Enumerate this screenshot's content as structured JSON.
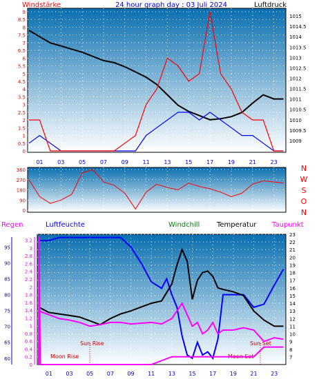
{
  "header": {
    "left": "Windstärke",
    "center": "24 hour graph day : 03 Juli 2024",
    "right": "Luftdruck"
  },
  "colors": {
    "wind": "#ff0000",
    "gust": "#0000ff",
    "pressure": "#000000",
    "humidity": "#0000ff",
    "windchill": "#008000",
    "temperature": "#000000",
    "dewpoint": "#ff00ff",
    "sun_moon": "#cc0000",
    "plot_top": "#0a6fb0",
    "plot_bottom": "#ffffff"
  },
  "chart_data": [
    {
      "type": "line",
      "title": "Windstärke / Luftdruck",
      "x_ticks": [
        "01",
        "03",
        "05",
        "07",
        "09",
        "11",
        "13",
        "15",
        "17",
        "19",
        "21",
        "23"
      ],
      "x_range": [
        0,
        24
      ],
      "y_left_range": [
        0,
        9
      ],
      "y_left_ticks": [
        "0",
        "0.5",
        "1",
        "1.5",
        "2",
        "2.5",
        "3",
        "3.5",
        "4",
        "4.5",
        "5",
        "5.5",
        "6",
        "6.5",
        "7",
        "7.5",
        "8",
        "8.5",
        "9"
      ],
      "y_right_range": [
        1008.5,
        1015.2
      ],
      "y_right_ticks": [
        "1009",
        "1009.5",
        "1010",
        "1010.5",
        "1011",
        "1011.5",
        "1012",
        "1012.5",
        "1013",
        "1013.5",
        "1014",
        "1014.5",
        "1015"
      ],
      "series": [
        {
          "name": "Luftdruck",
          "axis": "right",
          "x": [
            0,
            1,
            2,
            3,
            4,
            5,
            6,
            7,
            8,
            9,
            10,
            11,
            12,
            13,
            14,
            15,
            16,
            17,
            18,
            19,
            20,
            21,
            22,
            23,
            23.9
          ],
          "y": [
            1014.3,
            1014.0,
            1013.7,
            1013.55,
            1013.4,
            1013.25,
            1013.05,
            1012.85,
            1012.75,
            1012.55,
            1012.3,
            1012.05,
            1011.7,
            1011.2,
            1010.7,
            1010.4,
            1010.2,
            1010.0,
            1010.05,
            1010.15,
            1010.35,
            1010.8,
            1011.2,
            1011.0,
            1011.0
          ]
        },
        {
          "name": "Windstärke",
          "axis": "left",
          "x": [
            0,
            1,
            2,
            3,
            4,
            5,
            6,
            7,
            8,
            9,
            10,
            11,
            12,
            13,
            14,
            15,
            16,
            17,
            18,
            19,
            20,
            21,
            22,
            23,
            23.9
          ],
          "y": [
            0.5,
            1,
            0.5,
            0,
            0,
            0,
            0,
            0,
            0,
            0,
            0,
            1,
            1.5,
            2,
            2.5,
            2.5,
            2,
            2.5,
            2,
            1.5,
            1,
            1,
            0.5,
            0,
            0
          ]
        },
        {
          "name": "Böen",
          "axis": "left",
          "x": [
            0,
            1,
            2,
            3,
            4,
            5,
            6,
            7,
            8,
            9,
            10,
            11,
            12,
            13,
            14,
            15,
            16,
            17,
            18,
            19,
            20,
            21,
            22,
            23,
            23.9
          ],
          "y": [
            2,
            2,
            0,
            0,
            0,
            0,
            0,
            0,
            0,
            0.5,
            1,
            3,
            4,
            6,
            5.5,
            4.5,
            5,
            9,
            5,
            4,
            2.5,
            2,
            2,
            0,
            0
          ]
        }
      ]
    },
    {
      "type": "scatter",
      "title": "Windrichtung",
      "x_range": [
        0,
        24
      ],
      "y_range": [
        0,
        360
      ],
      "y_ticks": [
        "0",
        "90",
        "180",
        "270",
        "360"
      ],
      "direction_labels": [
        "N",
        "W",
        "S",
        "O",
        "N"
      ],
      "x": [
        0,
        1,
        2,
        3,
        4,
        5,
        6,
        7,
        8,
        9,
        10,
        11,
        12,
        13,
        14,
        15,
        16,
        17,
        18,
        19,
        20,
        21,
        22,
        23,
        23.9
      ],
      "y": [
        270,
        120,
        60,
        90,
        140,
        330,
        360,
        250,
        220,
        150,
        10,
        160,
        230,
        200,
        180,
        240,
        210,
        190,
        160,
        120,
        150,
        230,
        260,
        250,
        240
      ]
    },
    {
      "type": "line",
      "title": "Regen / Luftfeuchte / Windchill / Temperatur / Taupunkt",
      "x_ticks": [
        "01",
        "03",
        "05",
        "07",
        "09",
        "11",
        "13",
        "15",
        "17",
        "19",
        "21",
        "23"
      ],
      "x_range": [
        0,
        24
      ],
      "y_humidity_range": [
        58,
        99
      ],
      "y_humidity_ticks": [
        "60",
        "65",
        "70",
        "75",
        "80",
        "85",
        "90",
        "95"
      ],
      "y_rain_range": [
        0,
        3.3
      ],
      "y_rain_ticks": [
        "0",
        "0.2",
        "0.4",
        "0.6",
        "0.8",
        "1",
        "1.2",
        "1.4",
        "1.6",
        "1.8",
        "2",
        "2.2",
        "2.4",
        "2.6",
        "2.8",
        "3",
        "3.2"
      ],
      "y_temp_range": [
        6,
        23
      ],
      "y_temp_ticks": [
        "7",
        "8",
        "9",
        "10",
        "11",
        "12",
        "13",
        "14",
        "15",
        "16",
        "17",
        "18",
        "19",
        "20",
        "21",
        "22",
        "23"
      ],
      "annotations": [
        "Sun Rise",
        "Moon Rise",
        "Moon Set",
        "Sun Set"
      ],
      "annotation_x": [
        5.2,
        5.2,
        20.6,
        21.5
      ],
      "series": [
        {
          "name": "Luftfeuchte",
          "axis": "humidity",
          "x": [
            0,
            1,
            2,
            3,
            4,
            5,
            6,
            7,
            8,
            9,
            10,
            11,
            12,
            12.5,
            13,
            13.5,
            14,
            14.5,
            15,
            15.5,
            16,
            16.5,
            17,
            17.5,
            18,
            19,
            20,
            21,
            22,
            23,
            23.9
          ],
          "y": [
            97,
            97,
            98,
            98,
            98,
            98,
            98,
            98,
            98,
            95,
            90,
            84,
            82,
            85,
            80,
            76,
            67,
            61,
            60,
            65,
            61,
            62,
            60,
            66,
            80,
            80,
            80,
            76,
            77,
            83,
            88
          ]
        },
        {
          "name": "Temperatur",
          "axis": "temp",
          "x": [
            0,
            1,
            2,
            3,
            4,
            5,
            6,
            7,
            8,
            9,
            10,
            11,
            12,
            13,
            13.5,
            14,
            14.5,
            15,
            15.5,
            16,
            16.5,
            17,
            17.5,
            18,
            19,
            20,
            21,
            22,
            23,
            23.9
          ],
          "y": [
            13.5,
            12.8,
            12.6,
            12.4,
            12.2,
            11.7,
            11.2,
            12.0,
            12.6,
            13.0,
            13.5,
            14.0,
            14.3,
            16.5,
            19.0,
            21.0,
            19.5,
            14.5,
            17.0,
            18.0,
            18.2,
            17.5,
            16.0,
            15.8,
            15.5,
            15.0,
            13.0,
            11.8,
            11.0,
            11.0
          ]
        },
        {
          "name": "Taupunkt",
          "axis": "temp",
          "x": [
            0,
            1,
            2,
            3,
            4,
            5,
            6,
            7,
            8,
            9,
            10,
            11,
            12,
            13,
            14,
            14.5,
            15,
            15.5,
            16,
            16.5,
            17,
            17.5,
            18,
            19,
            20,
            21,
            22,
            23,
            23.9
          ],
          "y": [
            13.0,
            12.5,
            12.0,
            11.8,
            11.5,
            11.0,
            11.2,
            11.5,
            11.5,
            11.3,
            11.4,
            11.5,
            11.3,
            12.0,
            14.0,
            12.5,
            11.0,
            11.5,
            10.0,
            10.5,
            11.5,
            10.0,
            10.5,
            10.5,
            10.8,
            10.5,
            9.0,
            9.5,
            9.3
          ]
        },
        {
          "name": "Regen",
          "axis": "rain",
          "x": [
            0,
            0.05,
            0.15,
            11,
            13,
            14,
            15,
            16,
            17,
            18,
            19,
            20,
            21,
            22,
            23,
            23.9
          ],
          "y": [
            0,
            3.3,
            0,
            0,
            0.2,
            0.2,
            0.2,
            0.2,
            0.2,
            0.2,
            0.2,
            0.2,
            0.2,
            0.45,
            0.45,
            0.45
          ]
        }
      ]
    }
  ],
  "panel1": {
    "x_labels": [
      "01",
      "03",
      "05",
      "07",
      "09",
      "11",
      "13",
      "15",
      "17",
      "19",
      "21",
      "23"
    ]
  },
  "panel2": {
    "right_labels": [
      "N",
      "W",
      "S",
      "O",
      "N"
    ]
  },
  "panel3": {
    "legend": {
      "regen": "Regen",
      "luftfeuchte": "Luftfeuchte",
      "windchill": "Windchill",
      "temperatur": "Temperatur",
      "taupunkt": "Taupunkt"
    },
    "annotations": {
      "sun_rise": "Sun Rise",
      "moon_rise": "Moon Rise",
      "moon_set": "Moon Set",
      "sun_set": "Sun Set"
    }
  }
}
